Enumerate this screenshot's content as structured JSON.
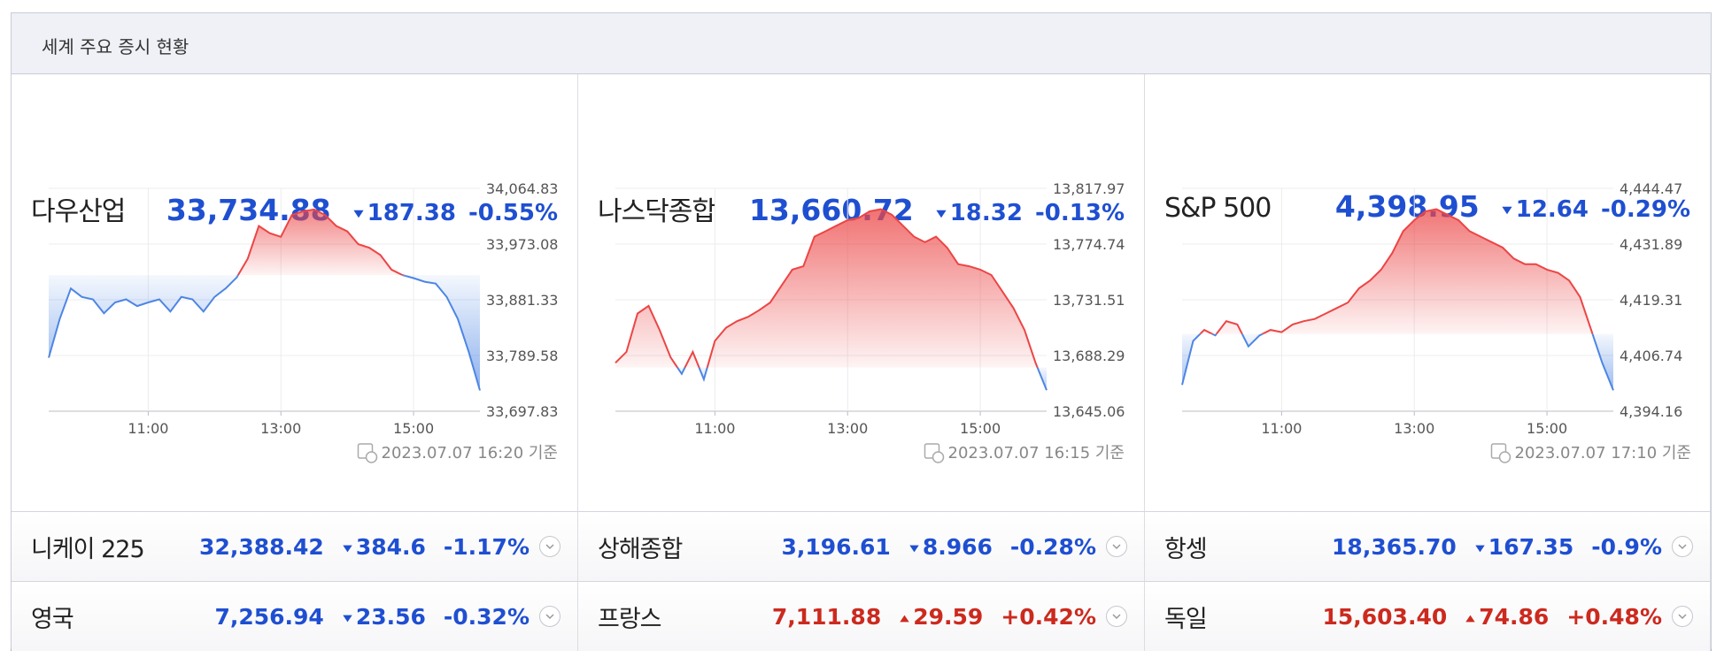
{
  "header": {
    "title": "세계 주요 증시 현황"
  },
  "panels": [
    {
      "name": "다우산업",
      "price": "33,734.88",
      "change": "187.38",
      "change_pct": "-0.55%",
      "timestamp": "2023.07.07 16:20 기준"
    },
    {
      "name": "나스닥종합",
      "price": "13,660.72",
      "change": "18.32",
      "change_pct": "-0.13%",
      "timestamp": "2023.07.07 16:15 기준"
    },
    {
      "name": "S&P 500",
      "price": "4,398.95",
      "change": "12.64",
      "change_pct": "-0.29%",
      "timestamp": "2023.07.07 17:10 기준"
    }
  ],
  "rows": [
    [
      {
        "name": "니케이 225",
        "price": "32,388.42",
        "change": "384.6",
        "change_pct": "-1.17%"
      },
      {
        "name": "상해종합",
        "price": "3,196.61",
        "change": "8.966",
        "change_pct": "-0.28%"
      },
      {
        "name": "항셍",
        "price": "18,365.70",
        "change": "167.35",
        "change_pct": "-0.9%"
      }
    ],
    [
      {
        "name": "영국",
        "price": "7,256.94",
        "change": "23.56",
        "change_pct": "-0.32%"
      },
      {
        "name": "프랑스",
        "price": "7,111.88",
        "change": "29.59",
        "change_pct": "+0.42%"
      },
      {
        "name": "독일",
        "price": "15,603.40",
        "change": "74.86",
        "change_pct": "+0.48%"
      }
    ]
  ],
  "chart_data": [
    {
      "type": "line",
      "x": [
        "09:30",
        "09:40",
        "09:50",
        "10:00",
        "10:10",
        "10:20",
        "10:30",
        "10:40",
        "10:50",
        "11:00",
        "11:10",
        "11:20",
        "11:30",
        "11:40",
        "11:50",
        "12:00",
        "12:10",
        "12:20",
        "12:30",
        "12:40",
        "12:50",
        "13:00",
        "13:10",
        "13:20",
        "13:30",
        "13:40",
        "13:50",
        "14:00",
        "14:10",
        "14:20",
        "14:30",
        "14:40",
        "14:50",
        "15:00",
        "15:10",
        "15:20",
        "15:30",
        "15:40",
        "15:50",
        "16:00"
      ],
      "values": [
        33786,
        33850,
        33900,
        33886,
        33882,
        33859,
        33877,
        33882,
        33871,
        33877,
        33882,
        33862,
        33886,
        33882,
        33862,
        33886,
        33900,
        33918,
        33949,
        34003,
        33991,
        33985,
        34021,
        34027,
        34030,
        34021,
        34003,
        33994,
        33973,
        33967,
        33955,
        33931,
        33922,
        33917,
        33911,
        33908,
        33886,
        33850,
        33795,
        33732
      ],
      "reference": 33922,
      "color_up": "#ec4545",
      "color_down": "#4d86e4",
      "xlim": [
        "09:30",
        "16:00"
      ],
      "xticks": [
        "11:00",
        "13:00",
        "15:00"
      ],
      "ylim": [
        33697.83,
        34064.83
      ],
      "yticks": [
        {
          "value": 33697.83,
          "label": "33,697.83"
        },
        {
          "value": 33789.58,
          "label": "33,789.58"
        },
        {
          "value": 33881.33,
          "label": "33,881.33"
        },
        {
          "value": 33973.08,
          "label": "33,973.08"
        },
        {
          "value": 34064.83,
          "label": "34,064.83"
        }
      ],
      "grid": true
    },
    {
      "type": "line",
      "x": [
        "09:30",
        "09:40",
        "09:50",
        "10:00",
        "10:10",
        "10:20",
        "10:30",
        "10:40",
        "10:50",
        "11:00",
        "11:10",
        "11:20",
        "11:30",
        "11:40",
        "11:50",
        "12:00",
        "12:10",
        "12:20",
        "12:30",
        "12:40",
        "12:50",
        "13:00",
        "13:10",
        "13:20",
        "13:30",
        "13:40",
        "13:50",
        "14:00",
        "14:10",
        "14:20",
        "14:30",
        "14:40",
        "14:50",
        "15:00",
        "15:10",
        "15:20",
        "15:30",
        "15:40",
        "15:50",
        "16:00"
      ],
      "values": [
        13682.6,
        13691.1,
        13720.9,
        13726.8,
        13708.1,
        13686.8,
        13674.0,
        13691.1,
        13669.8,
        13699.6,
        13709.8,
        13714.9,
        13718.3,
        13723.4,
        13729.4,
        13742.2,
        13754.9,
        13757.5,
        13780.5,
        13784.7,
        13789.0,
        13793.3,
        13795.0,
        13800.1,
        13801.8,
        13797.5,
        13789.0,
        13780.5,
        13776.2,
        13780.5,
        13772.0,
        13759.2,
        13757.5,
        13754.9,
        13750.7,
        13737.9,
        13725.1,
        13708.1,
        13682.6,
        13661.3
      ],
      "reference": 13679,
      "color_up": "#ec4545",
      "color_down": "#4d86e4",
      "xlim": [
        "09:30",
        "16:00"
      ],
      "xticks": [
        "11:00",
        "13:00",
        "15:00"
      ],
      "ylim": [
        13645.06,
        13817.97
      ],
      "yticks": [
        {
          "value": 13645.06,
          "label": "13,645.06"
        },
        {
          "value": 13688.29,
          "label": "13,688.29"
        },
        {
          "value": 13731.51,
          "label": "13,731.51"
        },
        {
          "value": 13774.74,
          "label": "13,774.74"
        },
        {
          "value": 13817.97,
          "label": "13,817.97"
        }
      ],
      "grid": true
    },
    {
      "type": "line",
      "x": [
        "09:30",
        "09:40",
        "09:50",
        "10:00",
        "10:10",
        "10:20",
        "10:30",
        "10:40",
        "10:50",
        "11:00",
        "11:10",
        "11:20",
        "11:30",
        "11:40",
        "11:50",
        "12:00",
        "12:10",
        "12:20",
        "12:30",
        "12:40",
        "12:50",
        "13:00",
        "13:10",
        "13:20",
        "13:30",
        "13:40",
        "13:50",
        "14:00",
        "14:10",
        "14:20",
        "14:30",
        "14:40",
        "14:50",
        "15:00",
        "15:10",
        "15:20",
        "15:30",
        "15:40",
        "15:50",
        "16:00"
      ],
      "values": [
        4400.11,
        4410.03,
        4412.51,
        4411.27,
        4414.49,
        4413.74,
        4408.79,
        4411.27,
        4412.51,
        4412.01,
        4413.74,
        4414.49,
        4414.98,
        4416.22,
        4417.46,
        4418.7,
        4421.92,
        4423.66,
        4426.13,
        4429.85,
        4434.81,
        4437.28,
        4439.27,
        4439.76,
        4438.52,
        4437.28,
        4434.81,
        4433.57,
        4432.33,
        4431.09,
        4428.61,
        4427.37,
        4427.37,
        4426.13,
        4425.39,
        4423.66,
        4419.94,
        4412.51,
        4405.07,
        4398.87
      ],
      "reference": 4411.59,
      "color_up": "#ec4545",
      "color_down": "#4d86e4",
      "xlim": [
        "09:30",
        "16:00"
      ],
      "xticks": [
        "11:00",
        "13:00",
        "15:00"
      ],
      "ylim": [
        4394.16,
        4444.47
      ],
      "yticks": [
        {
          "value": 4394.16,
          "label": "4,394.16"
        },
        {
          "value": 4406.74,
          "label": "4,406.74"
        },
        {
          "value": 4419.31,
          "label": "4,419.31"
        },
        {
          "value": 4431.89,
          "label": "4,431.89"
        },
        {
          "value": 4444.47,
          "label": "4,444.47"
        }
      ],
      "grid": true
    }
  ]
}
